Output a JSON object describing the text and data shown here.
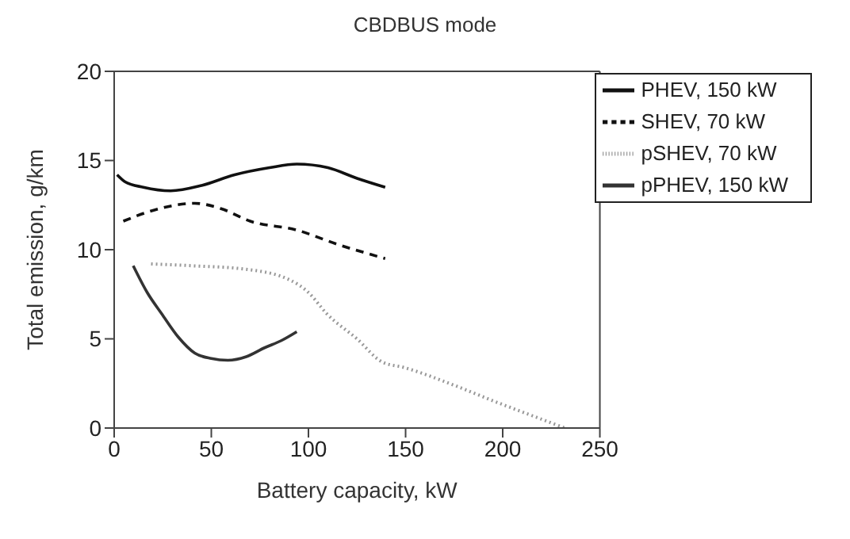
{
  "chart_data": {
    "type": "line",
    "title": "CBDBUS mode",
    "xlabel": "Battery capacity, kW",
    "ylabel": "Total emission, g/km",
    "xlim": [
      0,
      250
    ],
    "xticks": [
      0,
      50,
      100,
      150,
      200,
      250
    ],
    "ylim": [
      0,
      20
    ],
    "yticks": [
      0,
      5,
      10,
      15,
      20
    ],
    "grid": false,
    "legend": "top right",
    "marker": "none",
    "series": [
      {
        "name": "PHEV, 150 kW",
        "color": "#111111",
        "line_style": "solid",
        "x": [
          1.5,
          5.7,
          15,
          29,
          45,
          62,
          80,
          94,
          110,
          125,
          139.5
        ],
        "values": [
          14.2,
          13.8,
          13.5,
          13.3,
          13.6,
          14.2,
          14.6,
          14.8,
          14.6,
          14.0,
          13.5
        ]
      },
      {
        "name": "SHEV,  70 kW",
        "color": "#111111",
        "line_style": "dashed",
        "x": [
          4.7,
          20,
          41.5,
          55,
          70,
          94,
          115,
          139.5
        ],
        "values": [
          11.6,
          12.2,
          12.6,
          12.3,
          11.6,
          11.1,
          10.3,
          9.5
        ]
      },
      {
        "name": "pSHEV, 70 kW",
        "color": "#999999",
        "line_style": "dotted",
        "x": [
          19,
          40,
          68,
          90.5,
          100,
          109.5,
          125,
          138,
          149,
          175,
          198,
          215,
          232
        ],
        "values": [
          9.2,
          9.1,
          8.9,
          8.3,
          7.6,
          6.4,
          5.0,
          3.7,
          3.4,
          2.4,
          1.4,
          0.7,
          0
        ]
      },
      {
        "name": "pPHEV, 150 kW",
        "color": "#333333",
        "line_style": "solid",
        "x": [
          9.8,
          17,
          24.5,
          33,
          41.5,
          50,
          58.5,
          68,
          77.4,
          86,
          94
        ],
        "values": [
          9.1,
          7.6,
          6.4,
          5.1,
          4.2,
          3.9,
          3.8,
          4.0,
          4.5,
          4.9,
          5.4
        ]
      }
    ]
  }
}
